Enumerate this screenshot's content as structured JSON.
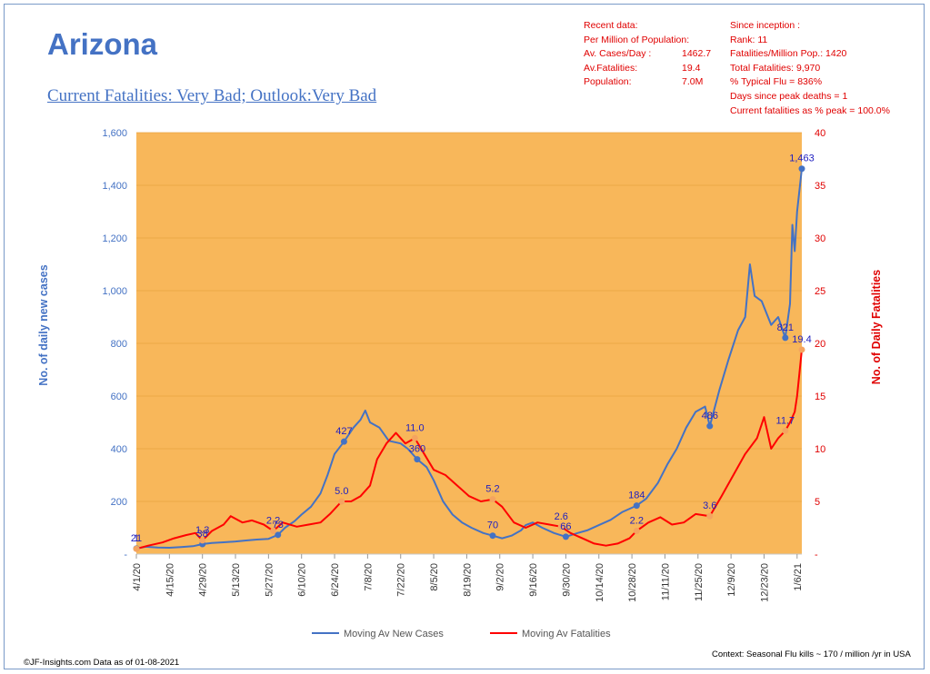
{
  "header": {
    "title": "Arizona",
    "subtitle": "Current Fatalities: Very Bad; Outlook:Very Bad"
  },
  "recent_data": {
    "heading1": "Recent data:",
    "heading2": "Per Million of Population:",
    "rows": [
      {
        "label": "Av. Cases/Day :",
        "value": "1462.7"
      },
      {
        "label": "Av.Fatalities:",
        "value": "19.4"
      },
      {
        "label": "Population:",
        "value": "7.0M"
      }
    ]
  },
  "since_inception": {
    "lines": [
      "Since inception :",
      "Rank: 11",
      "Fatalities/Million Pop.: 1420",
      "Total Fatalities: 9,970",
      "% Typical Flu = 836%",
      "Days since peak deaths = 1",
      "Current fatalities as % peak = 100.0%"
    ]
  },
  "footer": {
    "left": "©JF-Insights.com  Data as of 01-08-2021",
    "right": "Context: Seasonal Flu kills ~ 170 / million /yr in USA"
  },
  "colors": {
    "cases": "#4472c4",
    "fatalities": "#ff0000",
    "plot_background": "#f8b75a",
    "cases_marker": "#4472c4",
    "fatalities_marker": "#f4a460"
  },
  "chart_data": {
    "type": "line",
    "x_tick_labels": [
      "4/1/20",
      "4/15/20",
      "4/29/20",
      "5/13/20",
      "5/27/20",
      "6/10/20",
      "6/24/20",
      "7/8/20",
      "7/22/20",
      "8/5/20",
      "8/19/20",
      "9/2/20",
      "9/16/20",
      "9/30/20",
      "10/14/20",
      "10/28/20",
      "11/11/20",
      "11/25/20",
      "12/9/20",
      "12/23/20",
      "1/6/21"
    ],
    "x_range": [
      "4/1/20",
      "1/8/21"
    ],
    "ylabel": "No. of daily new  cases",
    "y2label": "No. of Daily Fatalities",
    "ylim": [
      0,
      1600
    ],
    "y_ticks": [
      "-",
      "200",
      "400",
      "600",
      "800",
      "1,000",
      "1,200",
      "1,400",
      "1,600"
    ],
    "y2lim": [
      0,
      40
    ],
    "y2_ticks": [
      "-",
      "5",
      "10",
      "15",
      "20",
      "25",
      "30",
      "35",
      "40"
    ],
    "legend_position": "bottom",
    "series": [
      {
        "name": "Moving Av New Cases",
        "axis": "left",
        "points": [
          [
            "4/1/20",
            21
          ],
          [
            "4/5/20",
            28
          ],
          [
            "4/10/20",
            25
          ],
          [
            "4/15/20",
            24
          ],
          [
            "4/20/20",
            27
          ],
          [
            "4/25/20",
            30
          ],
          [
            "4/29/20",
            38
          ],
          [
            "5/3/20",
            42
          ],
          [
            "5/8/20",
            45
          ],
          [
            "5/13/20",
            48
          ],
          [
            "5/18/20",
            52
          ],
          [
            "5/22/20",
            55
          ],
          [
            "5/27/20",
            58
          ],
          [
            "5/31/20",
            73
          ],
          [
            "6/3/20",
            100
          ],
          [
            "6/7/20",
            125
          ],
          [
            "6/10/20",
            150
          ],
          [
            "6/14/20",
            180
          ],
          [
            "6/18/20",
            230
          ],
          [
            "6/21/20",
            300
          ],
          [
            "6/24/20",
            380
          ],
          [
            "6/28/20",
            427
          ],
          [
            "7/2/20",
            480
          ],
          [
            "7/5/20",
            510
          ],
          [
            "7/7/20",
            545
          ],
          [
            "7/9/20",
            500
          ],
          [
            "7/13/20",
            480
          ],
          [
            "7/17/20",
            430
          ],
          [
            "7/22/20",
            420
          ],
          [
            "7/25/20",
            400
          ],
          [
            "7/29/20",
            360
          ],
          [
            "8/2/20",
            330
          ],
          [
            "8/5/20",
            280
          ],
          [
            "8/9/20",
            200
          ],
          [
            "8/13/20",
            150
          ],
          [
            "8/17/20",
            120
          ],
          [
            "8/21/20",
            100
          ],
          [
            "8/26/20",
            80
          ],
          [
            "8/30/20",
            70
          ],
          [
            "9/3/20",
            60
          ],
          [
            "9/7/20",
            70
          ],
          [
            "9/11/20",
            90
          ],
          [
            "9/13/20",
            110
          ],
          [
            "9/16/20",
            120
          ],
          [
            "9/20/20",
            100
          ],
          [
            "9/25/20",
            80
          ],
          [
            "9/30/20",
            66
          ],
          [
            "10/5/20",
            80
          ],
          [
            "10/9/20",
            90
          ],
          [
            "10/14/20",
            110
          ],
          [
            "10/19/20",
            130
          ],
          [
            "10/24/20",
            160
          ],
          [
            "10/30/20",
            184
          ],
          [
            "11/3/20",
            210
          ],
          [
            "11/8/20",
            270
          ],
          [
            "11/12/20",
            340
          ],
          [
            "11/16/20",
            400
          ],
          [
            "11/20/20",
            480
          ],
          [
            "11/24/20",
            540
          ],
          [
            "11/28/20",
            560
          ],
          [
            "11/30/20",
            486
          ],
          [
            "12/4/20",
            620
          ],
          [
            "12/8/20",
            740
          ],
          [
            "12/12/20",
            850
          ],
          [
            "12/15/20",
            900
          ],
          [
            "12/17/20",
            1100
          ],
          [
            "12/19/20",
            980
          ],
          [
            "12/22/20",
            960
          ],
          [
            "12/26/20",
            870
          ],
          [
            "12/29/20",
            900
          ],
          [
            "1/1/21",
            821
          ],
          [
            "1/3/21",
            950
          ],
          [
            "1/4/21",
            1250
          ],
          [
            "1/5/21",
            1150
          ],
          [
            "1/6/21",
            1300
          ],
          [
            "1/8/21",
            1463
          ]
        ]
      },
      {
        "name": "Moving Av Fatalities",
        "axis": "right",
        "points": [
          [
            "4/1/20",
            0.5
          ],
          [
            "4/6/20",
            0.8
          ],
          [
            "4/12/20",
            1.1
          ],
          [
            "4/17/20",
            1.5
          ],
          [
            "4/22/20",
            1.8
          ],
          [
            "4/26/20",
            2.0
          ],
          [
            "4/29/20",
            1.3
          ],
          [
            "5/3/20",
            2.2
          ],
          [
            "5/8/20",
            2.8
          ],
          [
            "5/11/20",
            3.6
          ],
          [
            "5/16/20",
            3.0
          ],
          [
            "5/20/20",
            3.2
          ],
          [
            "5/25/20",
            2.8
          ],
          [
            "5/29/20",
            2.2
          ],
          [
            "6/2/20",
            3.0
          ],
          [
            "6/8/20",
            2.6
          ],
          [
            "6/13/20",
            2.8
          ],
          [
            "6/18/20",
            3.0
          ],
          [
            "6/22/20",
            3.8
          ],
          [
            "6/27/20",
            5.0
          ],
          [
            "7/1/20",
            5.0
          ],
          [
            "7/5/20",
            5.5
          ],
          [
            "7/9/20",
            6.5
          ],
          [
            "7/12/20",
            9.0
          ],
          [
            "7/16/20",
            10.5
          ],
          [
            "7/20/20",
            11.5
          ],
          [
            "7/24/20",
            10.5
          ],
          [
            "7/28/20",
            11.0
          ],
          [
            "8/1/20",
            9.5
          ],
          [
            "8/5/20",
            8.0
          ],
          [
            "8/10/20",
            7.5
          ],
          [
            "8/15/20",
            6.5
          ],
          [
            "8/20/20",
            5.5
          ],
          [
            "8/25/20",
            5.0
          ],
          [
            "8/30/20",
            5.2
          ],
          [
            "9/3/20",
            4.5
          ],
          [
            "9/8/20",
            3.0
          ],
          [
            "9/13/20",
            2.5
          ],
          [
            "9/18/20",
            3.0
          ],
          [
            "9/23/20",
            2.8
          ],
          [
            "9/28/20",
            2.6
          ],
          [
            "10/2/20",
            2.0
          ],
          [
            "10/7/20",
            1.5
          ],
          [
            "10/12/20",
            1.0
          ],
          [
            "10/17/20",
            0.8
          ],
          [
            "10/22/20",
            1.0
          ],
          [
            "10/27/20",
            1.5
          ],
          [
            "10/30/20",
            2.2
          ],
          [
            "11/4/20",
            3.0
          ],
          [
            "11/9/20",
            3.5
          ],
          [
            "11/14/20",
            2.8
          ],
          [
            "11/19/20",
            3.0
          ],
          [
            "11/24/20",
            3.8
          ],
          [
            "11/30/20",
            3.6
          ],
          [
            "12/5/20",
            5.5
          ],
          [
            "12/10/20",
            7.5
          ],
          [
            "12/15/20",
            9.5
          ],
          [
            "12/20/20",
            11.0
          ],
          [
            "12/23/20",
            13.0
          ],
          [
            "12/26/20",
            10.0
          ],
          [
            "12/29/20",
            11.0
          ],
          [
            "1/1/21",
            11.7
          ],
          [
            "1/3/21",
            12.5
          ],
          [
            "1/5/21",
            13.5
          ],
          [
            "1/6/21",
            15.0
          ],
          [
            "1/8/21",
            19.4
          ]
        ]
      }
    ],
    "data_labels": [
      {
        "series": "cases",
        "x": "4/1/20",
        "y": 21,
        "text": "21"
      },
      {
        "series": "cases",
        "x": "4/29/20",
        "y": 38,
        "text": "38"
      },
      {
        "series": "cases",
        "x": "5/31/20",
        "y": 73,
        "text": "73"
      },
      {
        "series": "cases",
        "x": "6/28/20",
        "y": 427,
        "text": "427"
      },
      {
        "series": "cases",
        "x": "7/29/20",
        "y": 360,
        "text": "360"
      },
      {
        "series": "cases",
        "x": "8/30/20",
        "y": 70,
        "text": "70"
      },
      {
        "series": "cases",
        "x": "9/30/20",
        "y": 66,
        "text": "66"
      },
      {
        "series": "cases",
        "x": "10/30/20",
        "y": 184,
        "text": "184"
      },
      {
        "series": "cases",
        "x": "11/30/20",
        "y": 486,
        "text": "486"
      },
      {
        "series": "cases",
        "x": "1/1/21",
        "y": 821,
        "text": "821"
      },
      {
        "series": "cases",
        "x": "1/8/21",
        "y": 1463,
        "text": "1,463"
      },
      {
        "series": "fatalities",
        "x": "4/1/20",
        "y": 0.5,
        "text": "1"
      },
      {
        "series": "fatalities",
        "x": "4/29/20",
        "y": 1.3,
        "text": "1.3"
      },
      {
        "series": "fatalities",
        "x": "5/29/20",
        "y": 2.2,
        "text": "2.2"
      },
      {
        "series": "fatalities",
        "x": "6/27/20",
        "y": 5.0,
        "text": "5.0"
      },
      {
        "series": "fatalities",
        "x": "7/28/20",
        "y": 11.0,
        "text": "11.0"
      },
      {
        "series": "fatalities",
        "x": "8/30/20",
        "y": 5.2,
        "text": "5.2"
      },
      {
        "series": "fatalities",
        "x": "9/28/20",
        "y": 2.6,
        "text": "2.6"
      },
      {
        "series": "fatalities",
        "x": "10/30/20",
        "y": 2.2,
        "text": "2.2"
      },
      {
        "series": "fatalities",
        "x": "11/30/20",
        "y": 3.6,
        "text": "3.6"
      },
      {
        "series": "fatalities",
        "x": "1/1/21",
        "y": 11.7,
        "text": "11.7"
      },
      {
        "series": "fatalities",
        "x": "1/8/21",
        "y": 19.4,
        "text": "19.4"
      }
    ]
  }
}
